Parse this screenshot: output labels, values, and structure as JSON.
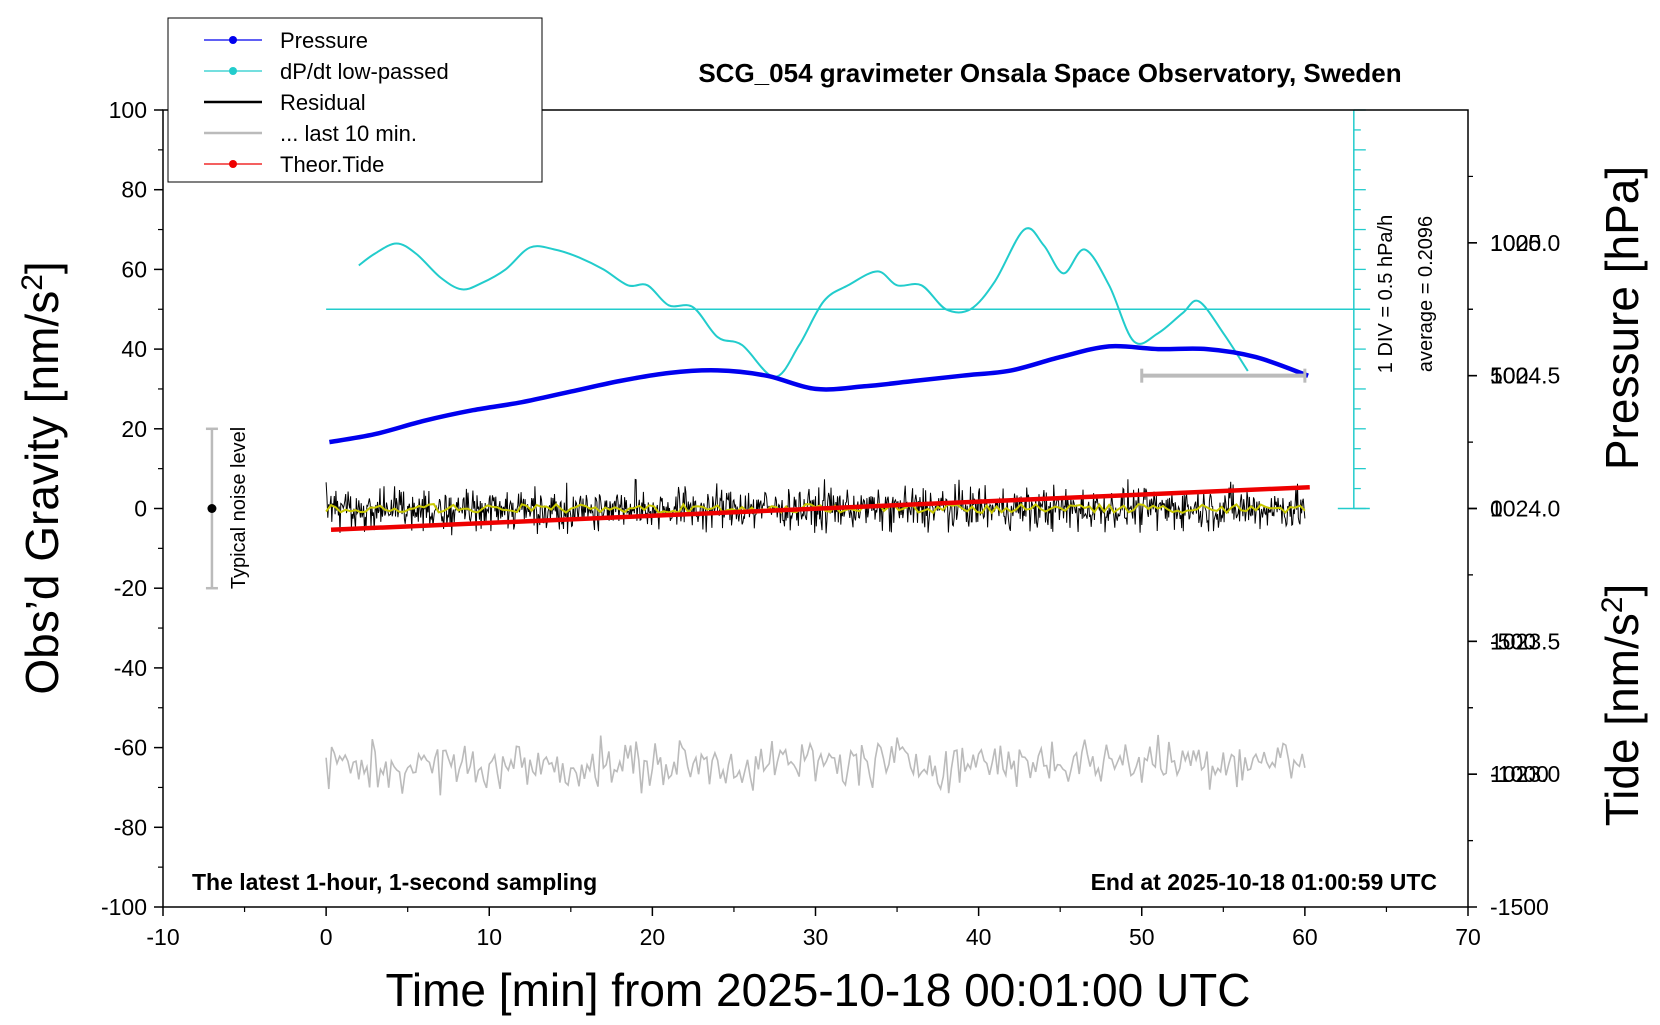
{
  "chart_data": {
    "type": "line",
    "title": "SCG_054 gravimeter Onsala Space Observatory, Sweden",
    "xlabel": "Time [min] from 2025-10-18 00:01:00 UTC",
    "ylabel_left": "Obs’d Gravity [nm/s",
    "ylabel_left_sup": "2",
    "ylabel_left_close": "]",
    "ylabel_pressure": "Pressure [hPa]",
    "ylabel_tide": "Tide [nm/s",
    "ylabel_tide_sup": "2",
    "ylabel_tide_close": "]",
    "xlim": [
      -10,
      70
    ],
    "ylim": [
      -100,
      100
    ],
    "pressure_lim": [
      1022.5,
      1025.5
    ],
    "tide_lim": [
      -1500,
      1500
    ],
    "x_ticks": [
      "-10",
      "0",
      "10",
      "20",
      "30",
      "40",
      "50",
      "60",
      "70"
    ],
    "y_ticks": [
      "-100",
      "-80",
      "-60",
      "-40",
      "-20",
      "0",
      "20",
      "40",
      "60",
      "80",
      "100"
    ],
    "pressure_ticks": [
      "1023.0",
      "1023.5",
      "1024.0",
      "1024.5",
      "1025.0"
    ],
    "tide_ticks": [
      "-1500",
      "-1000",
      "-500",
      "0",
      "500",
      "1000"
    ],
    "grid": false,
    "legend": {
      "position": "top-left",
      "entries": [
        {
          "name": "Pressure",
          "color": "#0000ee",
          "marker": true
        },
        {
          "name": "dP/dt low-passed",
          "color": "#22cccc",
          "marker": true
        },
        {
          "name": "Residual",
          "color": "#000000",
          "marker": false
        },
        {
          "name": "... last 10 min.",
          "color": "#bbbbbb",
          "marker": false
        },
        {
          "name": "Theor.Tide",
          "color": "#ee0000",
          "marker": true
        }
      ]
    },
    "annotations": {
      "bottom_left": "The latest 1-hour, 1-second sampling",
      "bottom_right": "End at 2025-10-18 01:00:59 UTC",
      "noise": "Typical noise level",
      "dpdt_scale": "1 DIV = 0.5 hPa/h",
      "dpdt_average": "average = 0.2096"
    },
    "noise_bar": {
      "x": -7,
      "y_center": 0,
      "y_low": -20,
      "y_high": 20
    },
    "last10_bar": {
      "x_start": 50,
      "x_end": 60,
      "tide": 500
    },
    "dpdt_baseline_gravity": 50,
    "dpdt_scale_axis": {
      "x": 63,
      "y_bottom": 0,
      "y_top": 100,
      "tick_step": 5
    },
    "series": [
      {
        "name": "Pressure",
        "axis": "pressure",
        "x": [
          0.2,
          3,
          6,
          9,
          12,
          15,
          18,
          21,
          24,
          27,
          30,
          33,
          36,
          39,
          42,
          45,
          48,
          51,
          54,
          57,
          60.2
        ],
        "y": [
          1024.25,
          1024.28,
          1024.33,
          1024.37,
          1024.4,
          1024.44,
          1024.48,
          1024.51,
          1024.52,
          1024.5,
          1024.45,
          1024.46,
          1024.48,
          1024.5,
          1024.52,
          1024.57,
          1024.61,
          1024.6,
          1024.6,
          1024.57,
          1024.5
        ]
      },
      {
        "name": "dP/dt low-passed",
        "axis": "gravity",
        "x": [
          2,
          3,
          4.3,
          5.5,
          7,
          8.3,
          9.5,
          11,
          12.5,
          14,
          15.5,
          17,
          18.5,
          19.7,
          21,
          22.5,
          24,
          25.5,
          27.5,
          29,
          30.5,
          32,
          33.8,
          35,
          36.5,
          38,
          39.5,
          41,
          42.8,
          44,
          45.2,
          46.5,
          48,
          49.5,
          51,
          52.5,
          53.5,
          55,
          56.5
        ],
        "y": [
          61,
          64,
          66.5,
          64,
          58,
          55,
          56.5,
          60,
          65.5,
          65,
          63,
          60,
          56,
          56,
          51,
          50.5,
          43,
          41,
          33,
          41,
          52,
          56,
          59.5,
          56,
          56,
          50,
          50,
          57,
          70,
          66,
          59,
          65,
          56,
          42,
          44,
          49,
          52,
          44,
          34.5
        ]
      },
      {
        "name": "Residual",
        "axis": "gravity",
        "x": [
          0,
          60
        ],
        "y": [
          0,
          0
        ],
        "rms": 4.5,
        "peak": 14
      },
      {
        "name": "... last 10 min.",
        "axis": "gravity",
        "x": [
          0,
          60
        ],
        "y": [
          -65,
          -63
        ],
        "rms": 3.5,
        "peak": 10
      },
      {
        "name": "Theor.Tide",
        "axis": "tide",
        "x": [
          0.3,
          60.3
        ],
        "y": [
          -80,
          80
        ]
      }
    ]
  }
}
